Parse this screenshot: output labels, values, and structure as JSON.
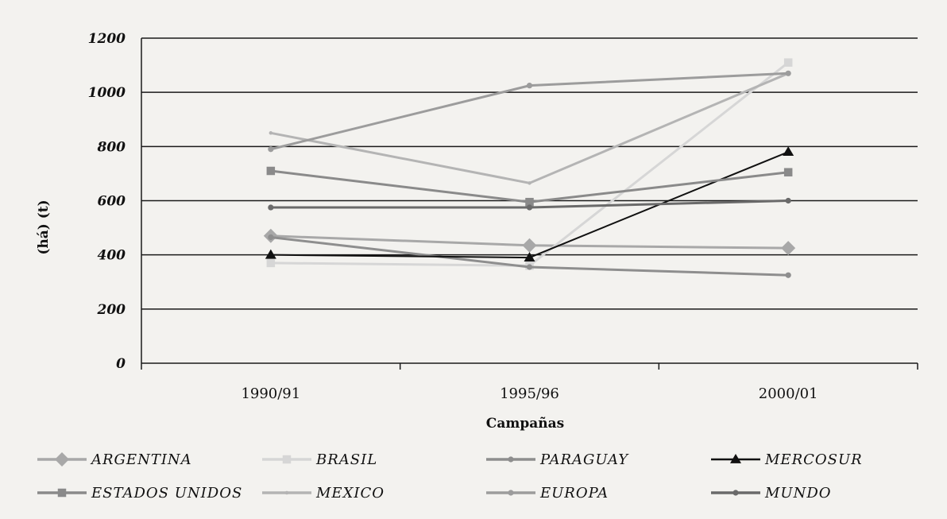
{
  "chart_data": {
    "type": "line",
    "title": "",
    "xlabel": "Campañas",
    "ylabel": "(há) (t)",
    "ylim": [
      0,
      1200
    ],
    "yticks": [
      0,
      200,
      400,
      600,
      800,
      1000,
      1200
    ],
    "grid": true,
    "legend_position": "bottom",
    "categories": [
      "1990/91",
      "1995/96",
      "2000/01"
    ],
    "series": [
      {
        "name": "ARGENTINA",
        "values": [
          470,
          435,
          425
        ],
        "color": "#a8a8a8",
        "marker": "diamond"
      },
      {
        "name": "BRASIL",
        "values": [
          370,
          360,
          1110
        ],
        "color": "#d6d6d6",
        "marker": "square"
      },
      {
        "name": "PARAGUAY",
        "values": [
          465,
          355,
          325
        ],
        "color": "#8e8e8e",
        "marker": "circle"
      },
      {
        "name": "MERCOSUR",
        "values": [
          400,
          390,
          780
        ],
        "color": "#111111",
        "marker": "triangle"
      },
      {
        "name": "ESTADOS UNIDOS",
        "values": [
          710,
          595,
          705
        ],
        "color": "#8a8a8a",
        "marker": "square"
      },
      {
        "name": "MEXICO",
        "values": [
          850,
          665,
          1070
        ],
        "color": "#b4b4b4",
        "marker": "dot"
      },
      {
        "name": "EUROPA",
        "values": [
          790,
          1025,
          1070
        ],
        "color": "#9c9c9c",
        "marker": "circle"
      },
      {
        "name": "MUNDO",
        "values": [
          575,
          575,
          600
        ],
        "color": "#6a6a6a",
        "marker": "circle"
      }
    ]
  }
}
